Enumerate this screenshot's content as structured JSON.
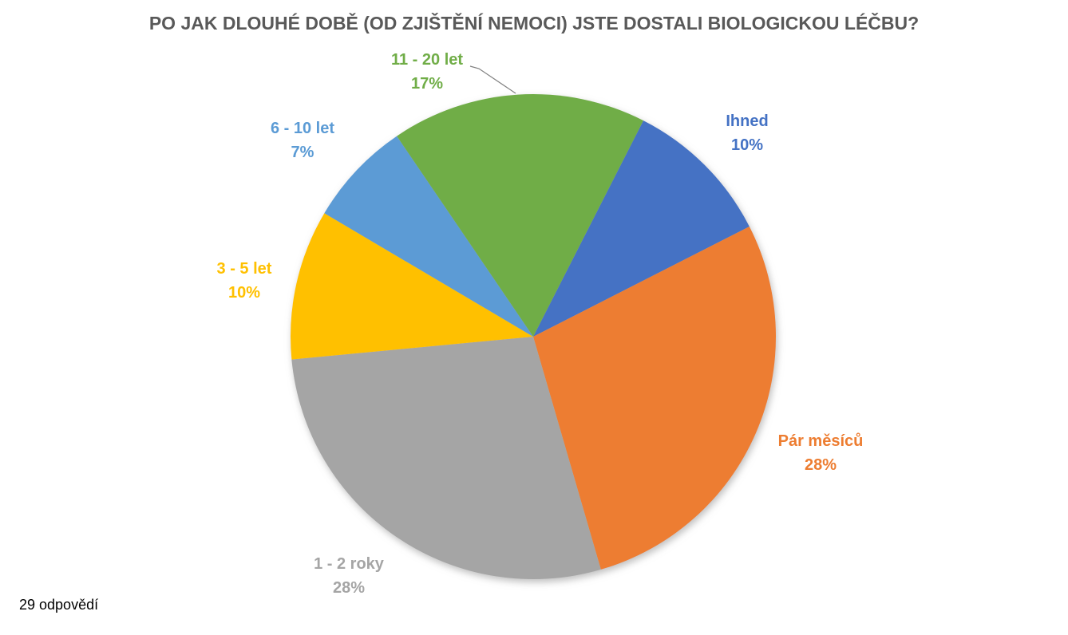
{
  "title": "PO JAK DLOUHÉ DOBĚ (OD ZJIŠTĚNÍ NEMOCI) JSTE DOSTALI BIOLOGICKOU LÉČBU?",
  "footer": {
    "responses": "29 odpovědí"
  },
  "chart_data": {
    "type": "pie",
    "title": "PO JAK DLOUHÉ DOBĚ (OD ZJIŠTĚNÍ NEMOCI) JSTE DOSTALI BIOLOGICKOU LÉČBU?",
    "total_responses_text": "29 odpovědí",
    "start_angle_deg": 27,
    "legend": "none",
    "labels_position": "outside, colored to match slice",
    "slices": [
      {
        "label": "Ihned",
        "pct_label": "10%",
        "value": 10,
        "color": "#4472C4"
      },
      {
        "label": "Pár měsíců",
        "pct_label": "28%",
        "value": 28,
        "color": "#ED7D31"
      },
      {
        "label": "1 - 2 roky",
        "pct_label": "28%",
        "value": 28,
        "color": "#A5A5A5"
      },
      {
        "label": "3 - 5 let",
        "pct_label": "10%",
        "value": 10,
        "color": "#FFC000"
      },
      {
        "label": "6 - 10 let",
        "pct_label": "7%",
        "value": 7,
        "color": "#5B9BD5"
      },
      {
        "label": "11 - 20 let",
        "pct_label": "17%",
        "value": 17,
        "color": "#70AD47"
      }
    ]
  }
}
